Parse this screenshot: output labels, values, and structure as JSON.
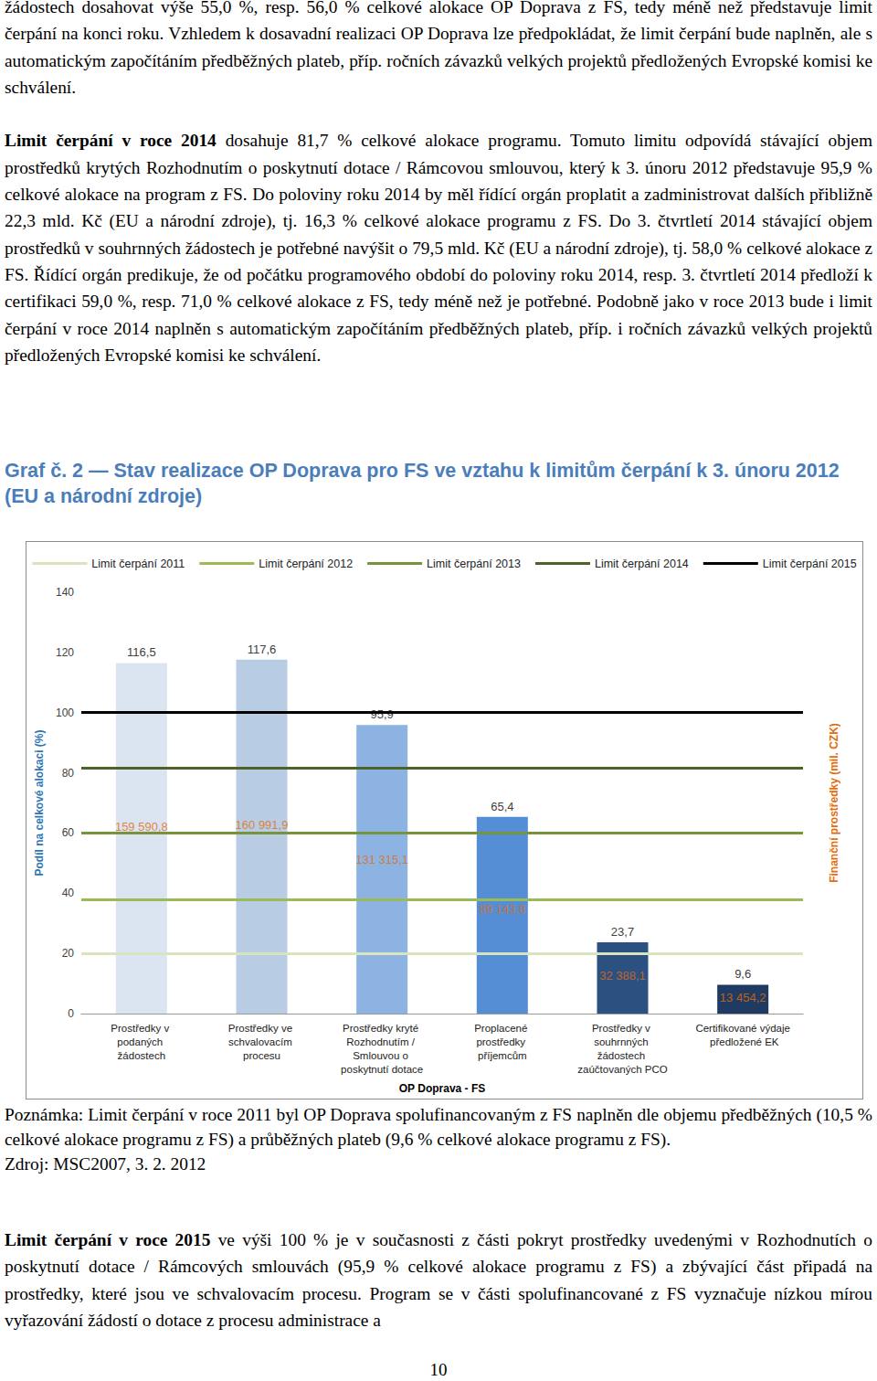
{
  "text_top": [
    {
      "text": "žádostech dosahovat výše 55,0 %, resp. 56,0 % celkové alokace OP Doprava z FS, tedy méně než představuje limit čerpání na konci roku. Vzhledem k dosavadní realizaci OP Doprava lze předpokládat, že limit čerpání bude naplněn, ale s automatickým započítáním předběžných plateb, příp. ročních závazků velkých projektů předložených Evropské komisi ke schválení."
    },
    {
      "lead": "Limit čerpání v roce 2014",
      "text": "dosahuje 81,7 % celkové alokace programu. Tomuto limitu odpovídá stávající objem prostředků krytých Rozhodnutím o poskytnutí dotace / Rámcovou smlouvou, který k 3. únoru 2012 představuje 95,9 % celkové alokace na program z FS. Do poloviny roku 2014 by měl řídící orgán proplatit a zadministrovat dalších přibližně 22,3 mld. Kč (EU a národní zdroje), tj. 16,3 % celkové alokace programu z FS. Do 3. čtvrtletí 2014 stávající objem prostředků v souhrnných žádostech je potřebné navýšit o 79,5 mld. Kč (EU a národní zdroje), tj. 58,0 % celkové alokace z FS. Řídící orgán predikuje, že od počátku programového období do poloviny roku 2014, resp. 3. čtvrtletí 2014 předloží k certifikaci 59,0 %, resp. 71,0 % celkové alokace z FS, tedy méně než je potřebné. Podobně jako v roce 2013 bude i limit čerpání v roce 2014 naplněn s automatickým započítáním předběžných plateb, příp. i ročních závazků velkých projektů předložených Evropské komisi ke schválení."
    }
  ],
  "figure_title": "Graf č. 2 — Stav realizace OP Doprava pro FS ve vztahu k limitům čerpání k 3. únoru 2012 (EU a národní zdroje)",
  "chart_data": {
    "type": "bar",
    "categories": [
      "Prostředky v podaných žádostech",
      "Prostředky ve schvalovacím procesu",
      "Prostředky kryté Rozhodnutím / Smlouvou o poskytnutí dotace",
      "Proplacené prostředky příjemcům",
      "Prostředky v souhrnných žádostech zaúčtovaných PCO",
      "Certifikované výdaje předložené EK"
    ],
    "values": [
      116.5,
      117.6,
      95.9,
      65.4,
      23.7,
      9.6
    ],
    "value_labels": [
      "116,5",
      "117,6",
      "95,9",
      "65,4",
      "23,7",
      "9,6"
    ],
    "colors": [
      "#dbe5f1",
      "#b8cce4",
      "#8db3e2",
      "#558ed5",
      "#2b5181",
      "#1f3b61"
    ],
    "data_labels": true,
    "x_label": "OP Doprava - FS",
    "y_label": "Podíl na celkové alokaci (%)",
    "y2_label": "Finanční prostředky (mil. CZK)",
    "ylim": [
      0,
      140
    ],
    "yticks": [
      0,
      20,
      40,
      60,
      80,
      100,
      120,
      140
    ],
    "y2lim": [
      0,
      360000
    ],
    "grid": false,
    "legend": "top",
    "money": {
      "axis": "y2",
      "color": "#e46c0a",
      "values": [
        159590.8,
        160991.9,
        131315.1,
        89143.8,
        32388.1,
        13454.2
      ],
      "value_labels": [
        "159 590,8",
        "160 991,9",
        "131 315,1",
        "89 143,8",
        "32 388,1",
        "13 454,2"
      ]
    },
    "limits": [
      {
        "name": "Limit čerpání 2011",
        "value": 20.1,
        "color": "#d7e4bd"
      },
      {
        "name": "Limit čerpání 2012",
        "value": 38.0,
        "color": "#9bbb59"
      },
      {
        "name": "Limit čerpání 2013",
        "value": 60.0,
        "color": "#77933c"
      },
      {
        "name": "Limit čerpání 2014",
        "value": 81.7,
        "color": "#4f6228"
      },
      {
        "name": "Limit čerpání 2015",
        "value": 100,
        "color": "#000000"
      }
    ]
  },
  "note": "Poznámka: Limit čerpání v roce 2011 byl OP Doprava spolufinancovaným z FS naplněn dle objemu předběžných (10,5 % celkové alokace programu z FS) a průběžných plateb (9,6 % celkové alokace programu z FS).",
  "source": "Zdroj: MSC2007, 3. 2. 2012",
  "text_bottom": [
    {
      "lead": "Limit čerpání v roce 2015",
      "text": "ve výši 100 % je v současnosti z části pokryt prostředky uvedenými v Rozhodnutích o poskytnutí dotace / Rámcových smlouvách (95,9 % celkové alokace programu z FS) a zbývající část připadá na prostředky, které jsou ve schvalovacím procesu. Program se v části spolufinancované z FS vyznačuje nízkou mírou vyřazování žádostí o dotace z procesu administrace a"
    }
  ],
  "page_number": "10"
}
